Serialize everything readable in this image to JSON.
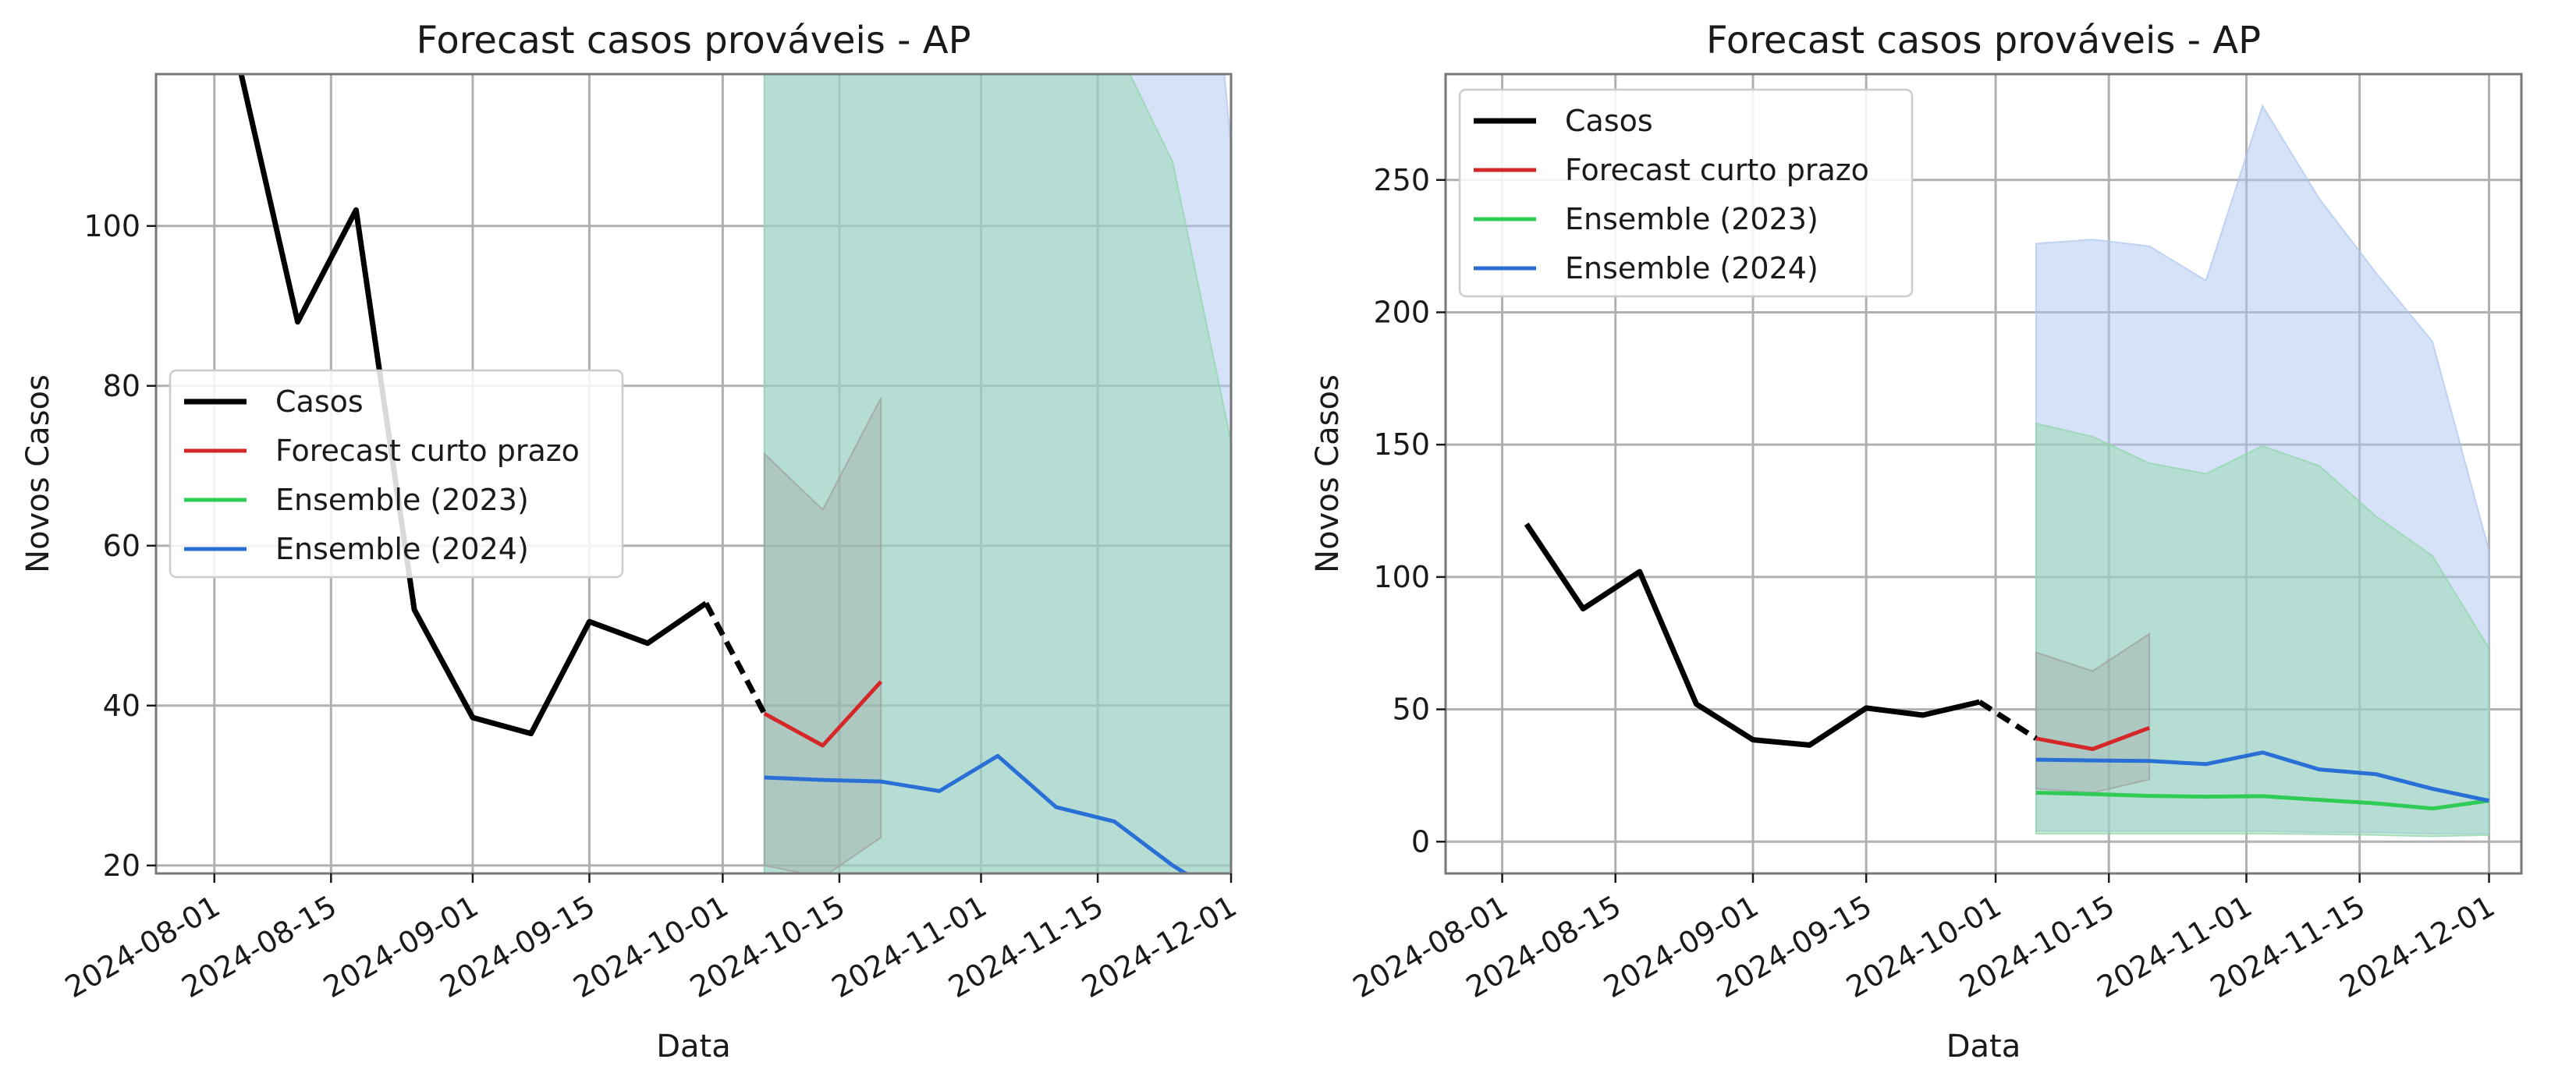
{
  "colors": {
    "casos": "#000000",
    "forecast": "#d62728",
    "ensemble_2023": "#2ecc55",
    "ensemble_2024": "#2a6fd6",
    "band_2023": "#8fd6a8",
    "band_2024": "#aec6ef",
    "band_forecast": "#9e9e9e",
    "grid": "#b0b0b0"
  },
  "chart_data": [
    {
      "type": "line",
      "title": "Forecast casos prováveis - AP",
      "xlabel": "Data",
      "ylabel": "Novos Casos",
      "xlim": [
        "2024-07-25",
        "2024-12-01"
      ],
      "ylim": [
        19,
        119
      ],
      "xticks": [
        "2024-08-01",
        "2024-08-15",
        "2024-09-01",
        "2024-09-15",
        "2024-10-01",
        "2024-10-15",
        "2024-11-01",
        "2024-11-15",
        "2024-12-01"
      ],
      "yticks": [
        20,
        40,
        60,
        80,
        100
      ],
      "grid": true,
      "legend_position": "center-left",
      "legend": [
        "Casos",
        "Forecast curto prazo",
        "Ensemble (2023)",
        "Ensemble (2024)"
      ],
      "series": [
        {
          "name": "Casos",
          "style": "solid",
          "x": [
            "2024-08-04",
            "2024-08-11",
            "2024-08-18",
            "2024-08-25",
            "2024-09-01",
            "2024-09-08",
            "2024-09-15",
            "2024-09-22",
            "2024-09-29"
          ],
          "y": [
            120,
            88,
            102,
            52,
            38.5,
            36.5,
            50.5,
            47.8,
            52.8
          ]
        },
        {
          "name": "Casos",
          "style": "dashed",
          "x": [
            "2024-09-29",
            "2024-10-06"
          ],
          "y": [
            52.8,
            39
          ]
        },
        {
          "name": "Forecast curto prazo",
          "x": [
            "2024-10-06",
            "2024-10-13",
            "2024-10-20"
          ],
          "y": [
            39,
            35,
            43
          ],
          "lower": [
            20,
            18.5,
            23.5
          ],
          "upper": [
            71.5,
            64.5,
            78.5
          ]
        },
        {
          "name": "Ensemble (2023)",
          "x": [
            "2024-10-06",
            "2024-10-13",
            "2024-10-20",
            "2024-10-27",
            "2024-11-03",
            "2024-11-10",
            "2024-11-17",
            "2024-11-24",
            "2024-12-01"
          ],
          "y": [
            18.5,
            18,
            17.3,
            17,
            17.2,
            15.8,
            14.5,
            12.5,
            15.5
          ],
          "lower": [
            3,
            3,
            3,
            3,
            3,
            2.8,
            2.5,
            2,
            2.5
          ],
          "upper": [
            158,
            153,
            143,
            139,
            149.5,
            142,
            123,
            108,
            73
          ]
        },
        {
          "name": "Ensemble (2024)",
          "x": [
            "2024-10-06",
            "2024-10-13",
            "2024-10-20",
            "2024-10-27",
            "2024-11-03",
            "2024-11-10",
            "2024-11-17",
            "2024-11-24",
            "2024-12-01"
          ],
          "y": [
            31,
            30.7,
            30.5,
            29.3,
            33.7,
            27.3,
            25.5,
            20,
            15.5
          ],
          "lower": [
            4,
            4,
            4,
            4,
            4,
            3.5,
            3.5,
            3,
            3
          ],
          "upper": [
            226,
            227.5,
            225,
            212,
            278,
            243,
            215,
            189,
            110
          ]
        }
      ]
    },
    {
      "type": "line",
      "title": "Forecast casos prováveis - AP",
      "xlabel": "Data",
      "ylabel": "Novos Casos",
      "xlim": [
        "2024-07-25",
        "2024-12-05"
      ],
      "ylim": [
        -12,
        290
      ],
      "xticks": [
        "2024-08-01",
        "2024-08-15",
        "2024-09-01",
        "2024-09-15",
        "2024-10-01",
        "2024-10-15",
        "2024-11-01",
        "2024-11-15",
        "2024-12-01"
      ],
      "yticks": [
        0,
        50,
        100,
        150,
        200,
        250
      ],
      "grid": true,
      "legend_position": "top-left",
      "legend": [
        "Casos",
        "Forecast curto prazo",
        "Ensemble (2023)",
        "Ensemble (2024)"
      ],
      "series": [
        {
          "name": "Casos",
          "style": "solid",
          "x": [
            "2024-08-04",
            "2024-08-11",
            "2024-08-18",
            "2024-08-25",
            "2024-09-01",
            "2024-09-08",
            "2024-09-15",
            "2024-09-22",
            "2024-09-29"
          ],
          "y": [
            120,
            88,
            102,
            52,
            38.5,
            36.5,
            50.5,
            47.8,
            52.8
          ]
        },
        {
          "name": "Casos",
          "style": "dashed",
          "x": [
            "2024-09-29",
            "2024-10-06"
          ],
          "y": [
            52.8,
            39
          ]
        },
        {
          "name": "Forecast curto prazo",
          "x": [
            "2024-10-06",
            "2024-10-13",
            "2024-10-20"
          ],
          "y": [
            39,
            35,
            43
          ],
          "lower": [
            20,
            18.5,
            23.5
          ],
          "upper": [
            71.5,
            64.5,
            78.5
          ]
        },
        {
          "name": "Ensemble (2023)",
          "x": [
            "2024-10-06",
            "2024-10-13",
            "2024-10-20",
            "2024-10-27",
            "2024-11-03",
            "2024-11-10",
            "2024-11-17",
            "2024-11-24",
            "2024-12-01"
          ],
          "y": [
            18.5,
            18,
            17.3,
            17,
            17.2,
            15.8,
            14.5,
            12.5,
            15.5
          ],
          "lower": [
            3,
            3,
            3,
            3,
            3,
            2.8,
            2.5,
            2,
            2.5
          ],
          "upper": [
            158,
            153,
            143,
            139,
            149.5,
            142,
            123,
            108,
            73
          ]
        },
        {
          "name": "Ensemble (2024)",
          "x": [
            "2024-10-06",
            "2024-10-13",
            "2024-10-20",
            "2024-10-27",
            "2024-11-03",
            "2024-11-10",
            "2024-11-17",
            "2024-11-24",
            "2024-12-01"
          ],
          "y": [
            31,
            30.7,
            30.5,
            29.3,
            33.7,
            27.3,
            25.5,
            20,
            15.5
          ],
          "lower": [
            4,
            4,
            4,
            4,
            4,
            3.5,
            3.5,
            3,
            3
          ],
          "upper": [
            226,
            227.5,
            225,
            212,
            278,
            243,
            215,
            189,
            110
          ]
        }
      ]
    }
  ]
}
